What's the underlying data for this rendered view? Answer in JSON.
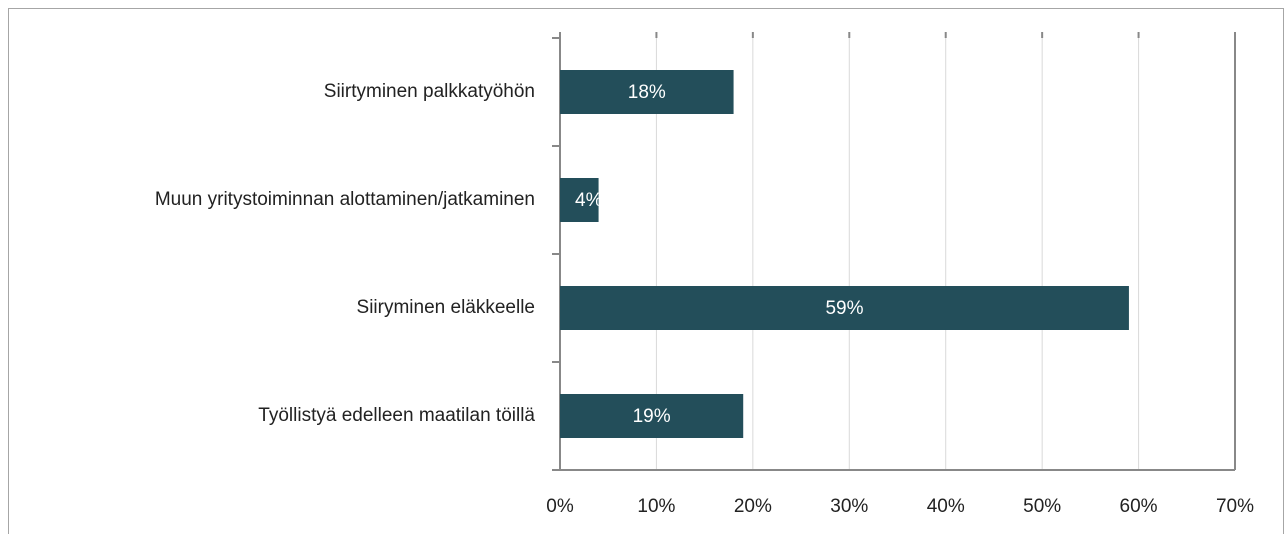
{
  "chart_data": {
    "type": "barh",
    "categories": [
      "Siirtyminen palkkatyöhön",
      "Muun yritystoiminnan alottaminen/jatkaminen",
      "Siiryminen eläkkeelle",
      "Työllistyä edelleen maatilan töillä"
    ],
    "values": [
      18,
      4,
      59,
      19
    ],
    "value_labels": [
      "18%",
      "4%",
      "59%",
      "19%"
    ],
    "color": "#234e5a",
    "xlim": [
      0,
      70
    ],
    "xticks": [
      {
        "value": 0,
        "label": "0%"
      },
      {
        "value": 10,
        "label": "10%"
      },
      {
        "value": 20,
        "label": "20%"
      },
      {
        "value": 30,
        "label": "30%"
      },
      {
        "value": 40,
        "label": "40%"
      },
      {
        "value": 50,
        "label": "50%"
      },
      {
        "value": 60,
        "label": "60%"
      },
      {
        "value": 70,
        "label": "70%"
      }
    ],
    "grid": true
  }
}
